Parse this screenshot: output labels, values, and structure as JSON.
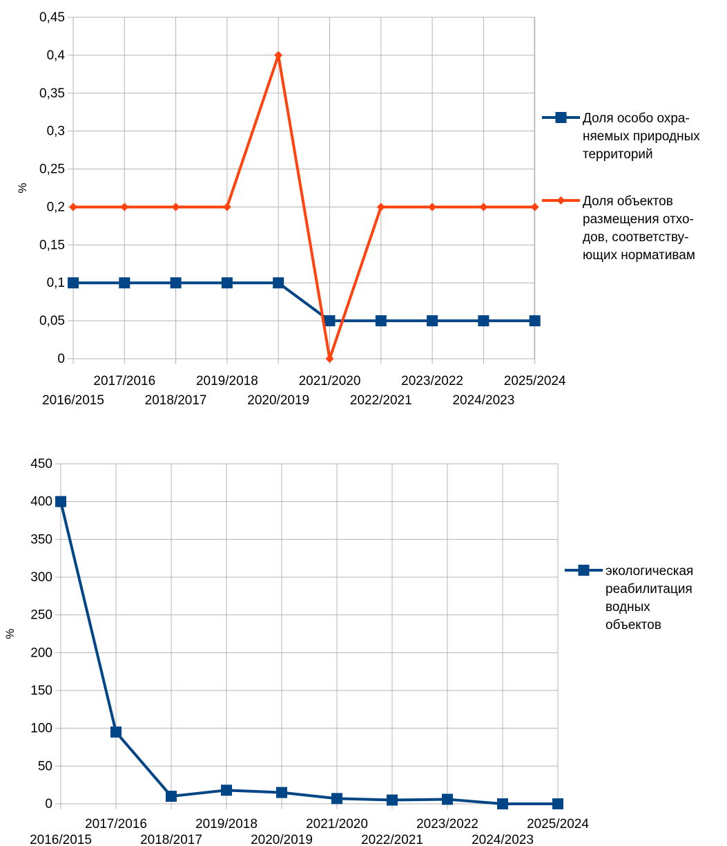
{
  "chart_data": [
    {
      "type": "line",
      "categories": [
        "2016/2015",
        "2017/2016",
        "2018/2017",
        "2019/2018",
        "2020/2019",
        "2021/2020",
        "2022/2021",
        "2023/2022",
        "2024/2023",
        "2025/2024"
      ],
      "ylabel": "%",
      "ylim": [
        0,
        0.45
      ],
      "yticks": [
        "0",
        "0,05",
        "0,1",
        "0,15",
        "0,2",
        "0,25",
        "0,3",
        "0,35",
        "0,4",
        "0,45"
      ],
      "grid": true,
      "legend_position": "right",
      "series": [
        {
          "name_lines": [
            "Доля особо охра-",
            "няемых природных",
            "территорий"
          ],
          "marker": "square",
          "color": "#004586",
          "values": [
            0.1,
            0.1,
            0.1,
            0.1,
            0.1,
            0.05,
            0.05,
            0.05,
            0.05,
            0.05
          ]
        },
        {
          "name_lines": [
            "Доля объектов",
            "размещения отхо-",
            "дов, соответству-",
            "ющих нормативам"
          ],
          "marker": "diamond",
          "color": "#ff420e",
          "values": [
            0.2,
            0.2,
            0.2,
            0.2,
            0.4,
            0,
            0.2,
            0.2,
            0.2,
            0.2
          ]
        }
      ]
    },
    {
      "type": "line",
      "categories": [
        "2016/2015",
        "2017/2016",
        "2018/2017",
        "2019/2018",
        "2020/2019",
        "2021/2020",
        "2022/2021",
        "2023/2022",
        "2024/2023",
        "2025/2024"
      ],
      "ylabel": "%",
      "ylim": [
        0,
        450
      ],
      "yticks": [
        "0",
        "50",
        "100",
        "150",
        "200",
        "250",
        "300",
        "350",
        "400",
        "450"
      ],
      "grid": true,
      "legend_position": "right",
      "series": [
        {
          "name_lines": [
            "экологическая",
            "реабилитация",
            "водных",
            "объектов"
          ],
          "marker": "square",
          "color": "#004586",
          "values": [
            400,
            95,
            10,
            18,
            15,
            7,
            5,
            6,
            0,
            0
          ]
        }
      ]
    }
  ]
}
